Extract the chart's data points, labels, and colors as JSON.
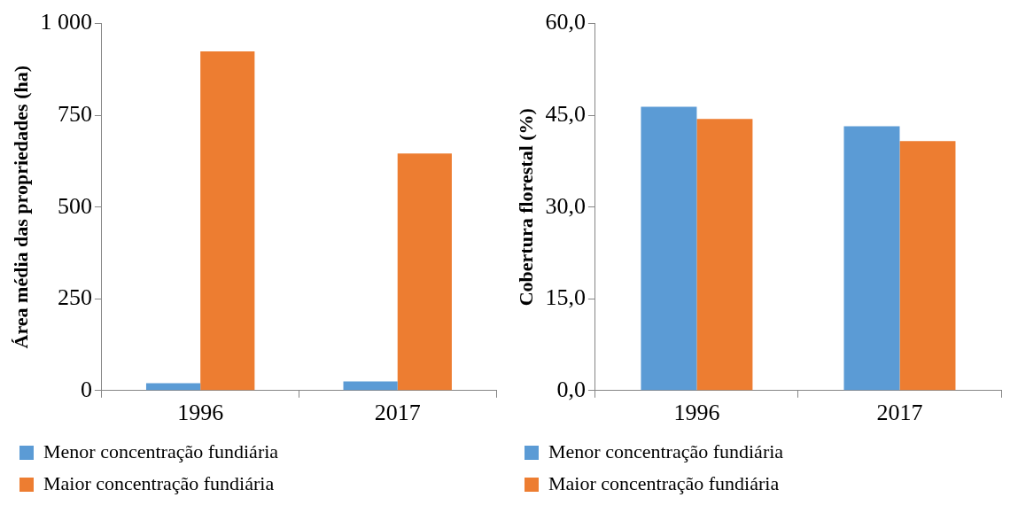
{
  "chart_data": [
    {
      "type": "bar",
      "ylabel": "Área média das propriedades (ha)",
      "categories": [
        "1996",
        "2017"
      ],
      "series": [
        {
          "name": "Menor concentração fundiária",
          "color": "#5b9bd5",
          "values": [
            20,
            25
          ]
        },
        {
          "name": "Maior concentração fundiária",
          "color": "#ed7d31",
          "values": [
            924,
            646
          ]
        }
      ],
      "ylim": [
        0,
        1000
      ],
      "yticks": [
        0,
        250,
        500,
        750,
        {
          "value": 1000,
          "label": "1 000"
        }
      ],
      "grid": false,
      "legend": "bottom"
    },
    {
      "type": "bar",
      "ylabel": "Cobertura florestal (%)",
      "categories": [
        "1996",
        "2017"
      ],
      "series": [
        {
          "name": "Menor concentração fundiária",
          "color": "#5b9bd5",
          "values": [
            46.4,
            43.2
          ]
        },
        {
          "name": "Maior concentração fundiária",
          "color": "#ed7d31",
          "values": [
            44.4,
            40.8
          ]
        }
      ],
      "ylim": [
        0,
        60
      ],
      "yticks": [
        {
          "value": 0,
          "label": "0,0"
        },
        {
          "value": 15,
          "label": "15,0"
        },
        {
          "value": 30,
          "label": "30,0"
        },
        {
          "value": 45,
          "label": "45,0"
        },
        {
          "value": 60,
          "label": "60,0"
        }
      ],
      "grid": false,
      "legend": "bottom"
    }
  ]
}
